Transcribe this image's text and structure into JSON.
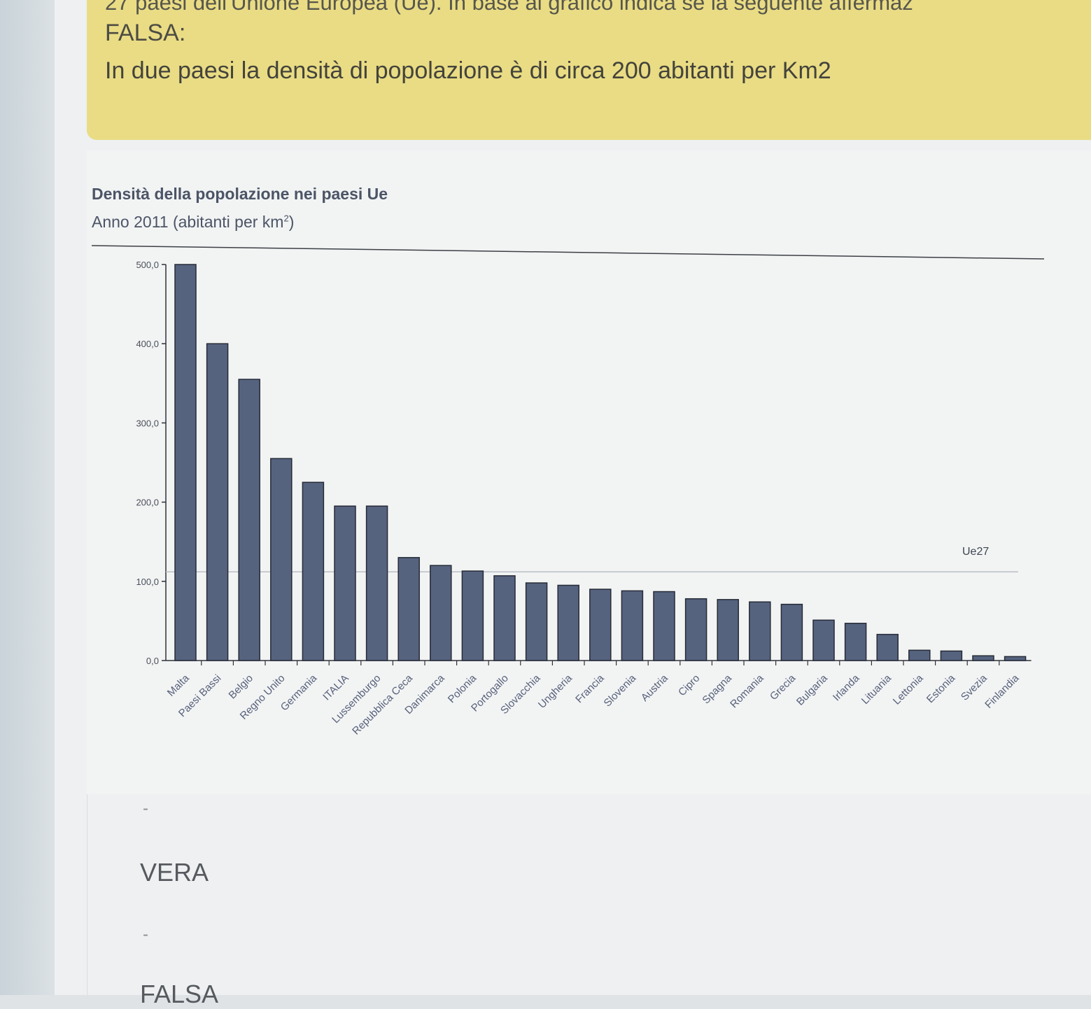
{
  "question": {
    "top_line": "27 paesi dell'Unione Europea (Ue). In base al grafico indica se la seguente affermaz",
    "falsa_label": "FALSA:",
    "statement": "In due paesi la densità di popolazione è di circa 200 abitanti per Km2"
  },
  "answers": {
    "dash1": "-",
    "vera": "VERA",
    "dash2": "-",
    "falsa": "FALSA"
  },
  "colors": {
    "bar": "#56637f",
    "question_bg": "#e9dc84"
  },
  "chart_data": {
    "type": "bar",
    "title": "Densità della popolazione nei paesi Ue",
    "subtitle": "Anno 2011 (abitanti per km",
    "subtitle_sup": "2",
    "subtitle_end": ")",
    "categories": [
      "Malta",
      "Paesi Bassi",
      "Belgio",
      "Regno Unito",
      "Germania",
      "ITALIA",
      "Lussemburgo",
      "Repubblica Ceca",
      "Danimarca",
      "Polonia",
      "Portogallo",
      "Slovacchia",
      "Ungheria",
      "Francia",
      "Slovenia",
      "Austria",
      "Cipro",
      "Spagna",
      "Romania",
      "Grecia",
      "Bulgaria",
      "Irlanda",
      "Lituania",
      "Lettonia",
      "Estonia",
      "Svezia",
      "Finlandia"
    ],
    "values": [
      500,
      400,
      355,
      255,
      225,
      195,
      195,
      130,
      120,
      113,
      107,
      98,
      95,
      90,
      88,
      87,
      78,
      77,
      74,
      71,
      51,
      47,
      33,
      13,
      12,
      6,
      5
    ],
    "reference_line": {
      "label": "Ue27",
      "value": 112
    },
    "yticks": [
      "0,0",
      "100,0",
      "200,0",
      "300,0",
      "400,0",
      "500,0"
    ],
    "ylim": [
      0,
      500
    ],
    "grid": false,
    "legend": "none"
  }
}
